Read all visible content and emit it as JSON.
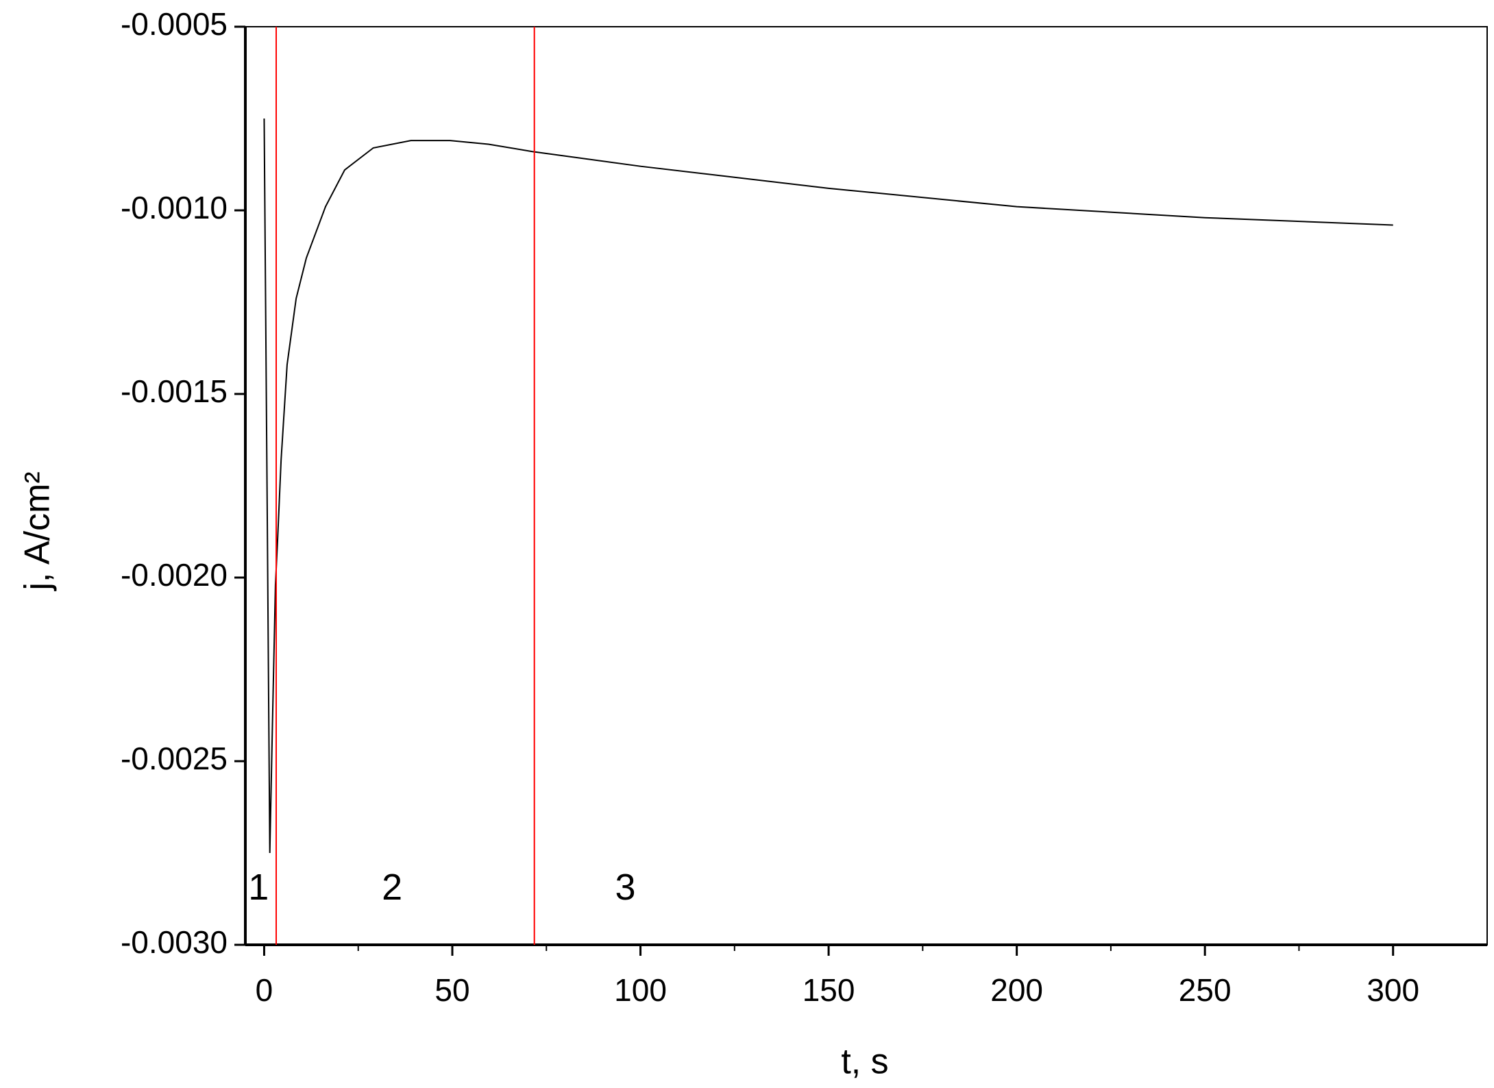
{
  "chart_data": {
    "type": "line",
    "x_label": "t, s",
    "y_label": "j, A/cm²",
    "x": [
      0,
      0.8,
      1.5,
      2.2,
      3.0,
      3.6,
      4.5,
      6.1,
      8.5,
      11.2,
      16.3,
      21.4,
      29,
      39,
      49.4,
      59.6,
      71.3,
      100,
      150,
      200,
      250,
      300
    ],
    "series": [
      {
        "color": "#000000",
        "values": [
          -0.00075,
          -0.0018,
          -0.00275,
          -0.0024,
          -0.00202,
          -0.00189,
          -0.00168,
          -0.00142,
          -0.00124,
          -0.00113,
          -0.00099,
          -0.00089,
          -0.00083,
          -0.00081,
          -0.00081,
          -0.00082,
          -0.00084,
          -0.00088,
          -0.00094,
          -0.00099,
          -0.00102,
          -0.00104
        ]
      }
    ],
    "vlines": [
      3.2,
      71.8
    ],
    "vline_color": "#ff0000",
    "annotations": [
      {
        "text": "1",
        "x": -1.5,
        "y": -0.00285
      },
      {
        "text": "2",
        "x": 34,
        "y": -0.00285
      },
      {
        "text": "3",
        "x": 96,
        "y": -0.00285
      }
    ],
    "xlim": [
      -5,
      325
    ],
    "ylim": [
      -0.003,
      -0.0005
    ],
    "xticks": [
      0,
      50,
      100,
      150,
      200,
      250,
      300
    ],
    "yticks": [
      {
        "value": -0.0005,
        "label": "-0.0005"
      },
      {
        "value": -0.001,
        "label": "-0.0010"
      },
      {
        "value": -0.0015,
        "label": "-0.0015"
      },
      {
        "value": -0.002,
        "label": "-0.0020"
      },
      {
        "value": -0.0025,
        "label": "-0.0025"
      },
      {
        "value": -0.003,
        "label": "-0.0030"
      }
    ]
  }
}
